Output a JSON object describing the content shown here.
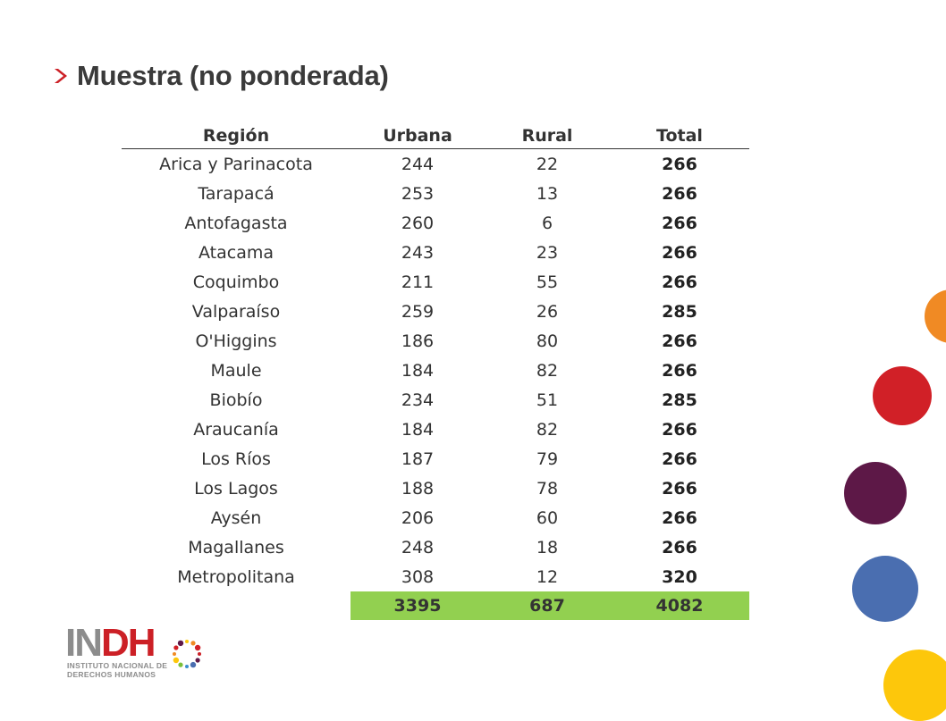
{
  "slide": {
    "title": "Muestra (no ponderada)"
  },
  "table": {
    "headers": {
      "region": "Región",
      "urbana": "Urbana",
      "rural": "Rural",
      "total": "Total"
    },
    "rows": [
      {
        "region": "Arica y Parinacota",
        "urbana": "244",
        "rural": "22",
        "total": "266"
      },
      {
        "region": "Tarapacá",
        "urbana": "253",
        "rural": "13",
        "total": "266"
      },
      {
        "region": "Antofagasta",
        "urbana": "260",
        "rural": "6",
        "total": "266"
      },
      {
        "region": "Atacama",
        "urbana": "243",
        "rural": "23",
        "total": "266"
      },
      {
        "region": "Coquimbo",
        "urbana": "211",
        "rural": "55",
        "total": "266"
      },
      {
        "region": "Valparaíso",
        "urbana": "259",
        "rural": "26",
        "total": "285"
      },
      {
        "region": "O'Higgins",
        "urbana": "186",
        "rural": "80",
        "total": "266"
      },
      {
        "region": "Maule",
        "urbana": "184",
        "rural": "82",
        "total": "266"
      },
      {
        "region": "Biobío",
        "urbana": "234",
        "rural": "51",
        "total": "285"
      },
      {
        "region": "Araucanía",
        "urbana": "184",
        "rural": "82",
        "total": "266"
      },
      {
        "region": "Los Ríos",
        "urbana": "187",
        "rural": "79",
        "total": "266"
      },
      {
        "region": "Los Lagos",
        "urbana": "188",
        "rural": "78",
        "total": "266"
      },
      {
        "region": "Aysén",
        "urbana": "206",
        "rural": "60",
        "total": "266"
      },
      {
        "region": "Magallanes",
        "urbana": "248",
        "rural": "18",
        "total": "266"
      },
      {
        "region": "Metropolitana",
        "urbana": "308",
        "rural": "12",
        "total": "320"
      }
    ],
    "totals": {
      "urbana": "3395",
      "rural": "687",
      "total": "4082"
    }
  },
  "logo": {
    "word_part1": "IN",
    "word_part2": "DH",
    "subtitle_line1": "INSTITUTO NACIONAL DE",
    "subtitle_line2": "DERECHOS HUMANOS"
  },
  "colors": {
    "accent_red": "#cc2026",
    "totals_green": "#92d050",
    "circle_orange": "#f08a24",
    "circle_red": "#d12027",
    "circle_purple": "#5d1847",
    "circle_blue": "#4a6eb0",
    "circle_yellow": "#fdc70b"
  }
}
